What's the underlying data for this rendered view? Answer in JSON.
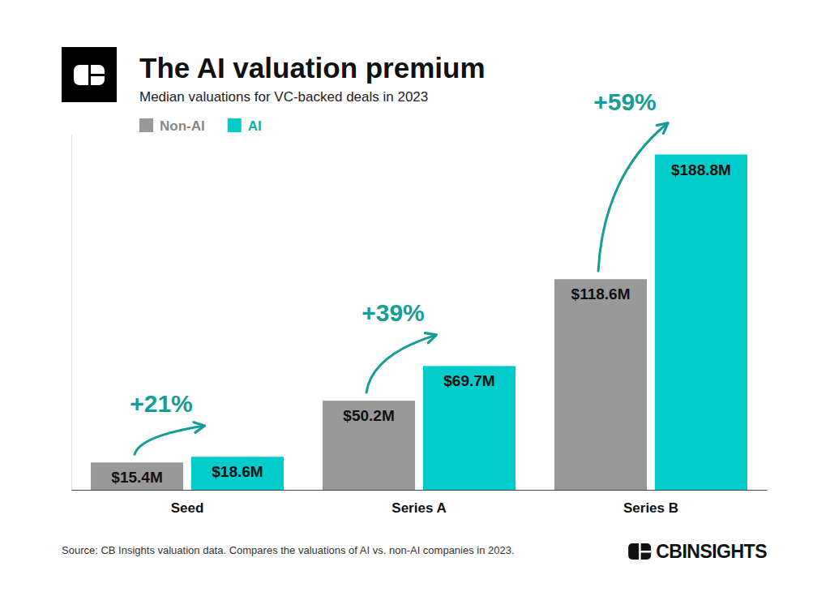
{
  "chart_data": {
    "type": "bar",
    "title": "The AI valuation premium",
    "subtitle": "Median valuations for VC-backed deals in 2023",
    "categories": [
      "Seed",
      "Series A",
      "Series B"
    ],
    "series": [
      {
        "name": "Non-AI",
        "color": "#999999",
        "values": [
          15.4,
          50.2,
          118.6
        ],
        "value_labels": [
          "$15.4M",
          "$50.2M",
          "$118.6M"
        ]
      },
      {
        "name": "AI",
        "color": "#00CCCC",
        "values": [
          18.6,
          69.7,
          188.8
        ],
        "value_labels": [
          "$18.6M",
          "$69.7M",
          "$188.8M"
        ]
      }
    ],
    "annotations": [
      "+21%",
      "+39%",
      "+59%"
    ],
    "ylim": [
      0,
      200
    ],
    "tick_labels": "x",
    "data_labels": true,
    "legend": "top-left",
    "source": "Source: CB Insights valuation data. Compares the valuations of AI vs. non-AI companies in 2023.",
    "brand": "CBINSIGHTS"
  }
}
